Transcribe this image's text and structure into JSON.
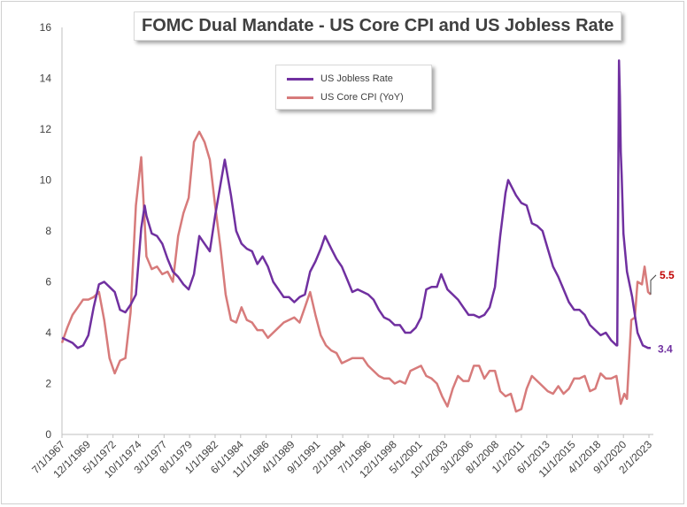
{
  "chart_data": {
    "type": "line",
    "title": "FOMC Dual Mandate - US Core CPI and US Jobless Rate",
    "xlabel": "",
    "ylabel": "",
    "ylim": [
      0,
      16
    ],
    "y_ticks": [
      0,
      2,
      4,
      6,
      8,
      10,
      12,
      14,
      16
    ],
    "x_tick_labels": [
      "7/1/1967",
      "12/1/1969",
      "5/1/1972",
      "10/1/1974",
      "3/1/1977",
      "8/1/1979",
      "1/1/1982",
      "6/1/1984",
      "11/1/1986",
      "4/1/1989",
      "9/1/1991",
      "2/1/1994",
      "7/1/1996",
      "12/1/1998",
      "5/1/2001",
      "10/1/2003",
      "3/1/2006",
      "8/1/2008",
      "1/1/2011",
      "6/1/2013",
      "11/1/2015",
      "4/1/2018",
      "9/1/2020",
      "2/1/2023"
    ],
    "x_range": [
      "1967-07",
      "2023-07"
    ],
    "grid": false,
    "legend_position": "top-center",
    "series": [
      {
        "name": "US Jobless Rate",
        "color": "#7030a0",
        "end_label": "3.4",
        "points": [
          [
            "1967-07",
            3.8
          ],
          [
            "1968-01",
            3.7
          ],
          [
            "1968-07",
            3.6
          ],
          [
            "1969-01",
            3.4
          ],
          [
            "1969-07",
            3.5
          ],
          [
            "1970-01",
            3.9
          ],
          [
            "1970-07",
            5.0
          ],
          [
            "1971-01",
            5.9
          ],
          [
            "1971-07",
            6.0
          ],
          [
            "1972-01",
            5.8
          ],
          [
            "1972-07",
            5.6
          ],
          [
            "1973-01",
            4.9
          ],
          [
            "1973-07",
            4.8
          ],
          [
            "1974-01",
            5.1
          ],
          [
            "1974-07",
            5.5
          ],
          [
            "1975-01",
            8.1
          ],
          [
            "1975-05",
            9.0
          ],
          [
            "1975-07",
            8.6
          ],
          [
            "1976-01",
            7.9
          ],
          [
            "1976-07",
            7.8
          ],
          [
            "1977-01",
            7.5
          ],
          [
            "1977-07",
            6.9
          ],
          [
            "1978-01",
            6.4
          ],
          [
            "1978-07",
            6.2
          ],
          [
            "1979-01",
            5.9
          ],
          [
            "1979-07",
            5.7
          ],
          [
            "1980-01",
            6.3
          ],
          [
            "1980-07",
            7.8
          ],
          [
            "1981-01",
            7.5
          ],
          [
            "1981-07",
            7.2
          ],
          [
            "1982-01",
            8.6
          ],
          [
            "1982-07",
            9.8
          ],
          [
            "1982-12",
            10.8
          ],
          [
            "1983-07",
            9.4
          ],
          [
            "1984-01",
            8.0
          ],
          [
            "1984-07",
            7.5
          ],
          [
            "1985-01",
            7.3
          ],
          [
            "1985-07",
            7.2
          ],
          [
            "1986-01",
            6.7
          ],
          [
            "1986-07",
            7.0
          ],
          [
            "1987-01",
            6.6
          ],
          [
            "1987-07",
            6.0
          ],
          [
            "1988-01",
            5.7
          ],
          [
            "1988-07",
            5.4
          ],
          [
            "1989-01",
            5.4
          ],
          [
            "1989-07",
            5.2
          ],
          [
            "1990-01",
            5.4
          ],
          [
            "1990-07",
            5.5
          ],
          [
            "1991-01",
            6.4
          ],
          [
            "1991-07",
            6.8
          ],
          [
            "1992-01",
            7.3
          ],
          [
            "1992-06",
            7.8
          ],
          [
            "1993-01",
            7.3
          ],
          [
            "1993-07",
            6.9
          ],
          [
            "1994-01",
            6.6
          ],
          [
            "1994-07",
            6.1
          ],
          [
            "1995-01",
            5.6
          ],
          [
            "1995-07",
            5.7
          ],
          [
            "1996-01",
            5.6
          ],
          [
            "1996-07",
            5.5
          ],
          [
            "1997-01",
            5.3
          ],
          [
            "1997-07",
            4.9
          ],
          [
            "1998-01",
            4.6
          ],
          [
            "1998-07",
            4.5
          ],
          [
            "1999-01",
            4.3
          ],
          [
            "1999-07",
            4.3
          ],
          [
            "2000-01",
            4.0
          ],
          [
            "2000-07",
            4.0
          ],
          [
            "2001-01",
            4.2
          ],
          [
            "2001-07",
            4.6
          ],
          [
            "2002-01",
            5.7
          ],
          [
            "2002-07",
            5.8
          ],
          [
            "2003-01",
            5.8
          ],
          [
            "2003-06",
            6.3
          ],
          [
            "2004-01",
            5.7
          ],
          [
            "2004-07",
            5.5
          ],
          [
            "2005-01",
            5.3
          ],
          [
            "2005-07",
            5.0
          ],
          [
            "2006-01",
            4.7
          ],
          [
            "2006-07",
            4.7
          ],
          [
            "2007-01",
            4.6
          ],
          [
            "2007-07",
            4.7
          ],
          [
            "2008-01",
            5.0
          ],
          [
            "2008-07",
            5.8
          ],
          [
            "2009-01",
            7.8
          ],
          [
            "2009-07",
            9.5
          ],
          [
            "2009-10",
            10.0
          ],
          [
            "2010-01",
            9.8
          ],
          [
            "2010-07",
            9.4
          ],
          [
            "2011-01",
            9.1
          ],
          [
            "2011-07",
            9.0
          ],
          [
            "2012-01",
            8.3
          ],
          [
            "2012-07",
            8.2
          ],
          [
            "2013-01",
            8.0
          ],
          [
            "2013-07",
            7.3
          ],
          [
            "2014-01",
            6.6
          ],
          [
            "2014-07",
            6.2
          ],
          [
            "2015-01",
            5.7
          ],
          [
            "2015-07",
            5.2
          ],
          [
            "2016-01",
            4.9
          ],
          [
            "2016-07",
            4.9
          ],
          [
            "2017-01",
            4.7
          ],
          [
            "2017-07",
            4.3
          ],
          [
            "2018-01",
            4.1
          ],
          [
            "2018-07",
            3.9
          ],
          [
            "2019-01",
            4.0
          ],
          [
            "2019-07",
            3.7
          ],
          [
            "2020-01",
            3.5
          ],
          [
            "2020-02",
            3.5
          ],
          [
            "2020-04",
            14.7
          ],
          [
            "2020-05",
            13.3
          ],
          [
            "2020-06",
            11.1
          ],
          [
            "2020-07",
            10.2
          ],
          [
            "2020-09",
            7.9
          ],
          [
            "2021-01",
            6.4
          ],
          [
            "2021-07",
            5.4
          ],
          [
            "2022-01",
            4.0
          ],
          [
            "2022-07",
            3.5
          ],
          [
            "2023-01",
            3.4
          ],
          [
            "2023-04",
            3.4
          ]
        ]
      },
      {
        "name": "US Core CPI (YoY)",
        "color": "#d77b7b",
        "end_label": "5.5",
        "points": [
          [
            "1967-07",
            3.6
          ],
          [
            "1968-01",
            4.2
          ],
          [
            "1968-07",
            4.7
          ],
          [
            "1969-01",
            5.0
          ],
          [
            "1969-07",
            5.3
          ],
          [
            "1970-01",
            5.3
          ],
          [
            "1970-07",
            5.4
          ],
          [
            "1971-01",
            5.6
          ],
          [
            "1971-07",
            4.5
          ],
          [
            "1972-01",
            3.0
          ],
          [
            "1972-07",
            2.4
          ],
          [
            "1973-01",
            2.9
          ],
          [
            "1973-07",
            3.0
          ],
          [
            "1974-01",
            4.8
          ],
          [
            "1974-07",
            9.0
          ],
          [
            "1975-01",
            10.9
          ],
          [
            "1975-07",
            7.0
          ],
          [
            "1976-01",
            6.5
          ],
          [
            "1976-07",
            6.6
          ],
          [
            "1977-01",
            6.3
          ],
          [
            "1977-07",
            6.4
          ],
          [
            "1978-01",
            6.0
          ],
          [
            "1978-07",
            7.8
          ],
          [
            "1979-01",
            8.7
          ],
          [
            "1979-07",
            9.3
          ],
          [
            "1980-01",
            11.5
          ],
          [
            "1980-07",
            11.9
          ],
          [
            "1981-01",
            11.5
          ],
          [
            "1981-07",
            10.8
          ],
          [
            "1982-01",
            9.0
          ],
          [
            "1982-07",
            7.4
          ],
          [
            "1983-01",
            5.5
          ],
          [
            "1983-07",
            4.5
          ],
          [
            "1984-01",
            4.4
          ],
          [
            "1984-07",
            5.0
          ],
          [
            "1985-01",
            4.5
          ],
          [
            "1985-07",
            4.4
          ],
          [
            "1986-01",
            4.1
          ],
          [
            "1986-07",
            4.1
          ],
          [
            "1987-01",
            3.8
          ],
          [
            "1987-07",
            4.0
          ],
          [
            "1988-01",
            4.2
          ],
          [
            "1988-07",
            4.4
          ],
          [
            "1989-01",
            4.5
          ],
          [
            "1989-07",
            4.6
          ],
          [
            "1990-01",
            4.4
          ],
          [
            "1990-07",
            5.0
          ],
          [
            "1991-01",
            5.6
          ],
          [
            "1991-07",
            4.7
          ],
          [
            "1992-01",
            3.9
          ],
          [
            "1992-07",
            3.5
          ],
          [
            "1993-01",
            3.3
          ],
          [
            "1993-07",
            3.2
          ],
          [
            "1994-01",
            2.8
          ],
          [
            "1994-07",
            2.9
          ],
          [
            "1995-01",
            3.0
          ],
          [
            "1995-07",
            3.0
          ],
          [
            "1996-01",
            3.0
          ],
          [
            "1996-07",
            2.7
          ],
          [
            "1997-01",
            2.5
          ],
          [
            "1997-07",
            2.3
          ],
          [
            "1998-01",
            2.2
          ],
          [
            "1998-07",
            2.2
          ],
          [
            "1999-01",
            2.0
          ],
          [
            "1999-07",
            2.1
          ],
          [
            "2000-01",
            2.0
          ],
          [
            "2000-07",
            2.5
          ],
          [
            "2001-01",
            2.6
          ],
          [
            "2001-07",
            2.7
          ],
          [
            "2002-01",
            2.3
          ],
          [
            "2002-07",
            2.2
          ],
          [
            "2003-01",
            2.0
          ],
          [
            "2003-07",
            1.5
          ],
          [
            "2004-01",
            1.1
          ],
          [
            "2004-07",
            1.8
          ],
          [
            "2005-01",
            2.3
          ],
          [
            "2005-07",
            2.1
          ],
          [
            "2006-01",
            2.1
          ],
          [
            "2006-07",
            2.7
          ],
          [
            "2007-01",
            2.7
          ],
          [
            "2007-07",
            2.2
          ],
          [
            "2008-01",
            2.5
          ],
          [
            "2008-07",
            2.5
          ],
          [
            "2009-01",
            1.7
          ],
          [
            "2009-07",
            1.5
          ],
          [
            "2010-01",
            1.6
          ],
          [
            "2010-07",
            0.9
          ],
          [
            "2011-01",
            1.0
          ],
          [
            "2011-07",
            1.8
          ],
          [
            "2012-01",
            2.3
          ],
          [
            "2012-07",
            2.1
          ],
          [
            "2013-01",
            1.9
          ],
          [
            "2013-07",
            1.7
          ],
          [
            "2014-01",
            1.6
          ],
          [
            "2014-07",
            1.9
          ],
          [
            "2015-01",
            1.6
          ],
          [
            "2015-07",
            1.8
          ],
          [
            "2016-01",
            2.2
          ],
          [
            "2016-07",
            2.2
          ],
          [
            "2017-01",
            2.3
          ],
          [
            "2017-07",
            1.7
          ],
          [
            "2018-01",
            1.8
          ],
          [
            "2018-07",
            2.4
          ],
          [
            "2019-01",
            2.2
          ],
          [
            "2019-07",
            2.2
          ],
          [
            "2020-01",
            2.3
          ],
          [
            "2020-06",
            1.2
          ],
          [
            "2020-10",
            1.6
          ],
          [
            "2021-01",
            1.4
          ],
          [
            "2021-06",
            4.5
          ],
          [
            "2021-10",
            4.6
          ],
          [
            "2022-01",
            6.0
          ],
          [
            "2022-06",
            5.9
          ],
          [
            "2022-09",
            6.6
          ],
          [
            "2023-01",
            5.6
          ],
          [
            "2023-04",
            5.5
          ]
        ]
      }
    ]
  }
}
